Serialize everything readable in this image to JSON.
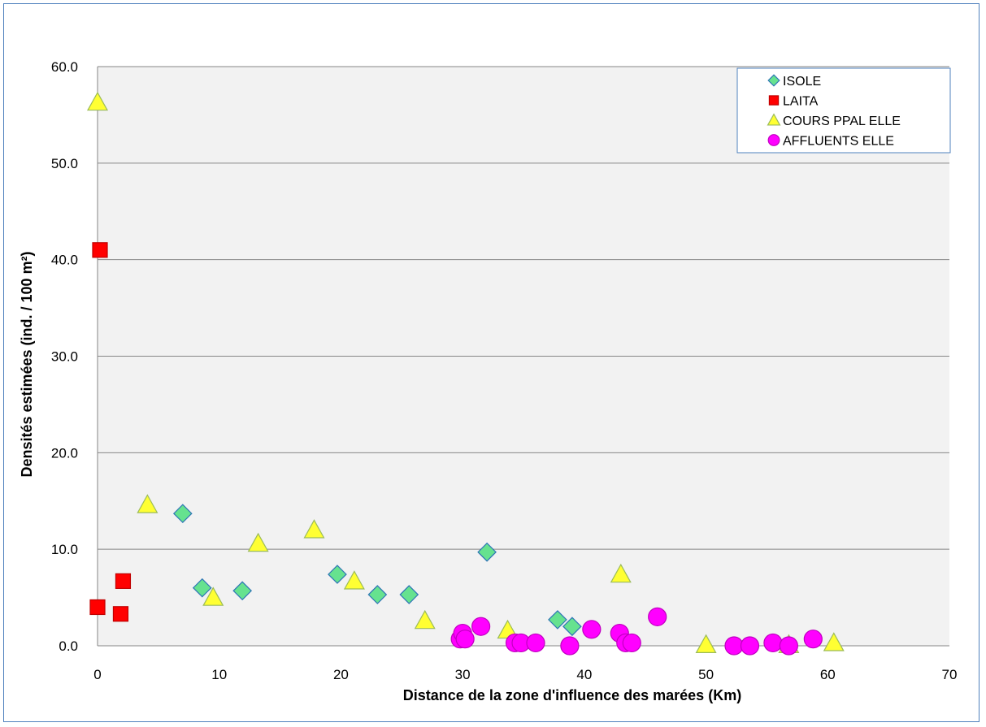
{
  "chart_data": {
    "type": "scatter",
    "xlabel": "Distance de la zone d'influence des marées (Km)",
    "ylabel": "Densités estimées (ind. / 100 m²)",
    "xlim": [
      0,
      70
    ],
    "ylim": [
      0,
      60
    ],
    "x_ticks": [
      "0",
      "10",
      "20",
      "30",
      "40",
      "50",
      "60",
      "70"
    ],
    "y_ticks": [
      "0.0",
      "10.0",
      "20.0",
      "30.0",
      "40.0",
      "50.0",
      "60.0"
    ],
    "grid": "horizontal",
    "legend_position": "top-right",
    "colors": {
      "plot_background": "#f2f2f2",
      "gridline": "#868686",
      "frame": "#4f81bd"
    },
    "series": [
      {
        "name": "ISOLE",
        "marker": "diamond",
        "color": "#66e28f",
        "points": [
          [
            7.0,
            13.7
          ],
          [
            8.6,
            6.0
          ],
          [
            11.9,
            5.7
          ],
          [
            19.7,
            7.4
          ],
          [
            23.0,
            5.3
          ],
          [
            25.6,
            5.3
          ],
          [
            32.0,
            9.7
          ],
          [
            37.8,
            2.7
          ],
          [
            39.0,
            2.0
          ]
        ]
      },
      {
        "name": "LAITA",
        "marker": "square",
        "color": "#ff0000",
        "points": [
          [
            0.0,
            4.0
          ],
          [
            0.2,
            41.0
          ],
          [
            1.9,
            3.3
          ],
          [
            2.1,
            6.7
          ]
        ]
      },
      {
        "name": "COURS PPAL ELLE",
        "marker": "triangle",
        "color": "#ffff33",
        "points": [
          [
            0.0,
            56.3
          ],
          [
            4.1,
            14.6
          ],
          [
            9.5,
            5.0
          ],
          [
            13.2,
            10.6
          ],
          [
            17.8,
            12.0
          ],
          [
            21.1,
            6.7
          ],
          [
            26.9,
            2.6
          ],
          [
            33.7,
            1.6
          ],
          [
            43.0,
            7.4
          ],
          [
            50.0,
            0.1
          ],
          [
            56.8,
            0.1
          ],
          [
            60.5,
            0.3
          ]
        ]
      },
      {
        "name": "AFFLUENTS ELLE",
        "marker": "circle",
        "color": "#ff00ff",
        "points": [
          [
            29.8,
            0.7
          ],
          [
            30.0,
            1.3
          ],
          [
            30.2,
            0.7
          ],
          [
            31.5,
            2.0
          ],
          [
            34.3,
            0.3
          ],
          [
            34.8,
            0.3
          ],
          [
            36.0,
            0.3
          ],
          [
            38.8,
            0.0
          ],
          [
            40.6,
            1.7
          ],
          [
            42.9,
            1.3
          ],
          [
            43.4,
            0.3
          ],
          [
            43.9,
            0.3
          ],
          [
            46.0,
            3.0
          ],
          [
            52.3,
            0.0
          ],
          [
            53.6,
            0.0
          ],
          [
            55.5,
            0.3
          ],
          [
            56.8,
            0.0
          ],
          [
            58.8,
            0.7
          ]
        ]
      }
    ]
  }
}
